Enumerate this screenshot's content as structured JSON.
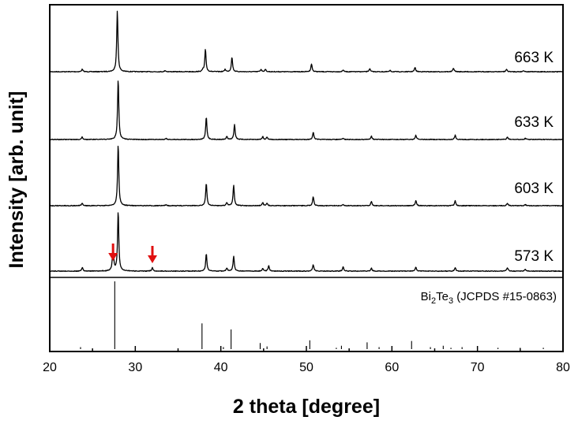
{
  "chart_data": {
    "type": "line",
    "xlabel": "2 theta [degree]",
    "ylabel": "Intensity [arb. unit]",
    "xlim": [
      20,
      80
    ],
    "x_ticks": [
      20,
      30,
      40,
      50,
      60,
      70,
      80
    ],
    "x_tick_labels": [
      "20",
      "30",
      "40",
      "50",
      "60",
      "70",
      "80"
    ],
    "grid": false,
    "series": [
      {
        "name": "663 K",
        "peaks": [
          [
            23.8,
            0.04
          ],
          [
            27.9,
            1.0
          ],
          [
            33.5,
            0.02
          ],
          [
            37.9,
            0.03
          ],
          [
            38.2,
            0.37
          ],
          [
            40.5,
            0.04
          ],
          [
            41.3,
            0.24
          ],
          [
            44.7,
            0.04
          ],
          [
            45.2,
            0.04
          ],
          [
            50.6,
            0.13
          ],
          [
            54.3,
            0.03
          ],
          [
            57.4,
            0.05
          ],
          [
            59.8,
            0.02
          ],
          [
            62.7,
            0.07
          ],
          [
            67.2,
            0.06
          ],
          [
            73.4,
            0.04
          ],
          [
            75.4,
            0.02
          ]
        ]
      },
      {
        "name": "633 K",
        "peaks": [
          [
            23.8,
            0.04
          ],
          [
            28.0,
            1.0
          ],
          [
            33.6,
            0.02
          ],
          [
            38.3,
            0.37
          ],
          [
            40.7,
            0.05
          ],
          [
            41.6,
            0.25
          ],
          [
            44.9,
            0.05
          ],
          [
            45.4,
            0.04
          ],
          [
            50.8,
            0.12
          ],
          [
            54.3,
            0.02
          ],
          [
            57.6,
            0.06
          ],
          [
            62.8,
            0.07
          ],
          [
            67.4,
            0.07
          ],
          [
            73.5,
            0.04
          ],
          [
            75.6,
            0.02
          ]
        ]
      },
      {
        "name": "603 K",
        "peaks": [
          [
            23.8,
            0.04
          ],
          [
            28.0,
            1.0
          ],
          [
            33.6,
            0.02
          ],
          [
            38.3,
            0.37
          ],
          [
            40.7,
            0.05
          ],
          [
            41.5,
            0.33
          ],
          [
            44.9,
            0.05
          ],
          [
            45.4,
            0.04
          ],
          [
            50.8,
            0.15
          ],
          [
            54.3,
            0.02
          ],
          [
            57.6,
            0.07
          ],
          [
            62.8,
            0.08
          ],
          [
            67.4,
            0.08
          ],
          [
            73.5,
            0.04
          ],
          [
            75.6,
            0.02
          ]
        ]
      },
      {
        "name": "573 K",
        "peaks": [
          [
            23.8,
            0.06
          ],
          [
            27.4,
            0.42
          ],
          [
            28.0,
            1.0
          ],
          [
            32.0,
            0.06
          ],
          [
            38.3,
            0.29
          ],
          [
            40.7,
            0.05
          ],
          [
            41.5,
            0.25
          ],
          [
            44.9,
            0.05
          ],
          [
            45.6,
            0.09
          ],
          [
            50.8,
            0.11
          ],
          [
            54.3,
            0.07
          ],
          [
            57.6,
            0.05
          ],
          [
            62.8,
            0.07
          ],
          [
            67.4,
            0.06
          ],
          [
            73.5,
            0.06
          ],
          [
            75.6,
            0.03
          ]
        ]
      }
    ],
    "secondary_phase_marks": [
      27.4,
      32.0
    ],
    "secondary_phase_mark_color": "#e01010",
    "reference": {
      "label_main": "Bi",
      "label_sub1": "2",
      "label_mid": "Te",
      "label_sub2": "3",
      "label_tail": " (JCPDS #15-0863)",
      "peaks": [
        [
          23.6,
          0.03
        ],
        [
          27.6,
          1.0
        ],
        [
          37.8,
          0.38
        ],
        [
          40.3,
          0.03
        ],
        [
          41.2,
          0.29
        ],
        [
          44.6,
          0.09
        ],
        [
          45.4,
          0.04
        ],
        [
          50.4,
          0.13
        ],
        [
          53.5,
          0.02
        ],
        [
          54.1,
          0.05
        ],
        [
          57.1,
          0.1
        ],
        [
          58.5,
          0.03
        ],
        [
          62.3,
          0.12
        ],
        [
          64.5,
          0.03
        ],
        [
          66.0,
          0.05
        ],
        [
          66.9,
          0.02
        ],
        [
          68.2,
          0.03
        ],
        [
          72.4,
          0.02
        ],
        [
          75.0,
          0.02
        ],
        [
          77.7,
          0.02
        ]
      ]
    }
  }
}
